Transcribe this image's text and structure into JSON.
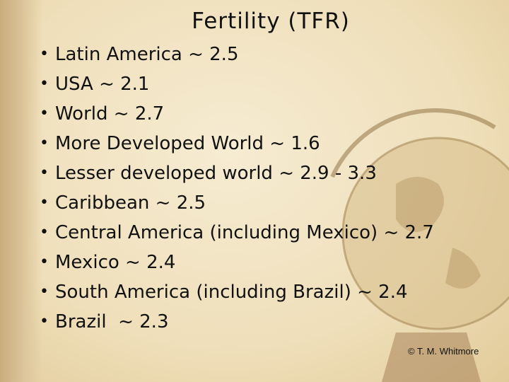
{
  "slide": {
    "title": "Fertility (TFR)",
    "bullets": [
      "Latin America ~ 2.5",
      "USA ~ 2.1",
      "World ~ 2.7",
      "More Developed World ~ 1.6",
      "Lesser developed world ~ 2.9 - 3.3",
      "Caribbean ~ 2.5",
      "Central America (including Mexico) ~ 2.7",
      "Mexico ~ 2.4",
      "South America (including Brazil) ~ 2.4",
      "Brazil  ~ 2.3"
    ],
    "credit": "© T. M. Whitmore"
  }
}
